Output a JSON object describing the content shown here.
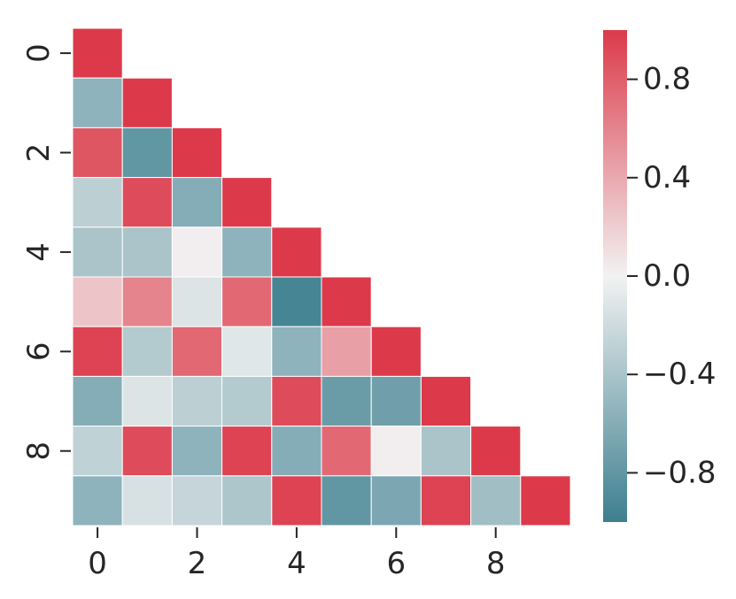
{
  "chart_data": {
    "type": "heatmap",
    "title": "",
    "xlabel": "",
    "ylabel": "",
    "mask": "upper-triangle",
    "x_tick_labels": [
      "0",
      "2",
      "4",
      "6",
      "8"
    ],
    "y_tick_labels": [
      "0",
      "2",
      "4",
      "6",
      "8"
    ],
    "x_tick_indices": [
      0,
      2,
      4,
      6,
      8
    ],
    "y_tick_indices": [
      0,
      2,
      4,
      6,
      8
    ],
    "colorbar": {
      "range": [
        -1,
        1
      ],
      "tick_values": [
        0.8,
        0.4,
        0.0,
        -0.4,
        -0.8
      ],
      "tick_labels": [
        "0.8",
        "0.4",
        "0.0",
        "−0.4",
        "−0.8"
      ]
    },
    "colors": {
      "positive": "#dc3a4a",
      "neutral": "#f2f2f2",
      "negative": "#3d7f8f"
    },
    "values": [
      [
        1.0
      ],
      [
        -0.55,
        1.0
      ],
      [
        0.85,
        -0.8,
        1.0
      ],
      [
        -0.3,
        0.9,
        -0.6,
        1.0
      ],
      [
        -0.4,
        -0.4,
        0.02,
        -0.55,
        1.0
      ],
      [
        0.25,
        0.6,
        -0.12,
        0.75,
        -0.95,
        1.0
      ],
      [
        0.95,
        -0.35,
        0.75,
        -0.1,
        -0.55,
        0.45,
        1.0
      ],
      [
        -0.6,
        -0.12,
        -0.3,
        -0.35,
        0.9,
        -0.75,
        -0.72,
        1.0
      ],
      [
        -0.28,
        0.9,
        -0.55,
        0.95,
        -0.6,
        0.75,
        0.02,
        -0.4,
        1.0
      ],
      [
        -0.55,
        -0.15,
        -0.25,
        -0.38,
        0.95,
        -0.8,
        -0.65,
        0.95,
        -0.45,
        1.0
      ]
    ]
  }
}
